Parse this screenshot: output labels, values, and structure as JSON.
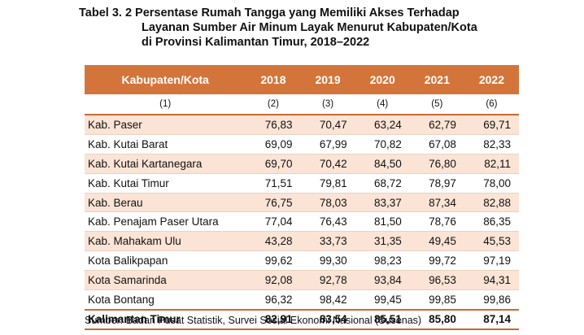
{
  "title": {
    "line1": "Tabel 3. 2 Persentase Rumah Tangga yang Memiliki Akses Terhadap",
    "line2": "Layanan Sumber Air Minum Layak Menurut Kabupaten/Kota",
    "line3": "di Provinsi Kalimantan Timur, 2018–2022"
  },
  "table": {
    "headers": [
      "Kabupaten/Kota",
      "2018",
      "2019",
      "2020",
      "2021",
      "2022"
    ],
    "col_numbers": [
      "(1)",
      "(2)",
      "(3)",
      "(4)",
      "(5)",
      "(6)"
    ],
    "rows": [
      {
        "name": "Kab. Paser",
        "values": [
          "76,83",
          "70,47",
          "63,24",
          "62,79",
          "69,71"
        ]
      },
      {
        "name": "Kab. Kutai Barat",
        "values": [
          "69,09",
          "67,99",
          "70,82",
          "67,08",
          "82,33"
        ]
      },
      {
        "name": "Kab. Kutai Kartanegara",
        "values": [
          "69,70",
          "70,42",
          "84,50",
          "76,80",
          "82,11"
        ]
      },
      {
        "name": "Kab. Kutai Timur",
        "values": [
          "71,51",
          "79,81",
          "68,72",
          "78,97",
          "78,00"
        ]
      },
      {
        "name": "Kab. Berau",
        "values": [
          "76,75",
          "78,03",
          "83,37",
          "87,34",
          "82,88"
        ]
      },
      {
        "name": "Kab. Penajam Paser Utara",
        "values": [
          "77,04",
          "76,43",
          "81,50",
          "78,76",
          "86,35"
        ]
      },
      {
        "name": "Kab. Mahakam Ulu",
        "values": [
          "43,28",
          "33,73",
          "31,35",
          "49,45",
          "45,53"
        ]
      },
      {
        "name": "Kota Balikpapan",
        "values": [
          "99,62",
          "99,30",
          "98,23",
          "99,72",
          "97,19"
        ]
      },
      {
        "name": "Kota Samarinda",
        "values": [
          "92,08",
          "92,78",
          "93,84",
          "96,53",
          "94,31"
        ]
      },
      {
        "name": "Kota Bontang",
        "values": [
          "96,32",
          "98,42",
          "99,45",
          "99,85",
          "99,86"
        ]
      }
    ],
    "total": {
      "name": "Kalimantan Timur",
      "values": [
        "82,91",
        "83,54",
        "85,51",
        "85,80",
        "87,14"
      ]
    }
  },
  "source": "Sumber: Badan Pusat Statistik, Survei Sosial Ekonomi Nasional (Susenas)",
  "colors": {
    "header_bg": "#d3753a",
    "stripe_bg": "#fbe4d5"
  }
}
